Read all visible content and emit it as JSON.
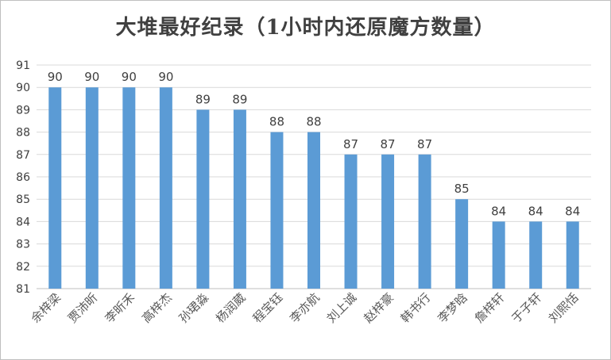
{
  "chart_data": {
    "type": "bar",
    "title": "大堆最好纪录（1小时内还原魔方数量）",
    "xlabel": "",
    "ylabel": "",
    "ylim": [
      81,
      91
    ],
    "yticks": [
      81,
      82,
      83,
      84,
      85,
      86,
      87,
      88,
      89,
      90,
      91
    ],
    "grid": true,
    "legend": "none",
    "bar_color": "#5b9bd5",
    "categories": [
      "余梓梁",
      "贾沛昕",
      "李昕禾",
      "高梓杰",
      "孙珺淼",
      "杨润葳",
      "程宝钰",
      "李亦航",
      "刘上诚",
      "赵梓豪",
      "韩书行",
      "李梦晗",
      "詹梓轩",
      "于子轩",
      "刘熙恬"
    ],
    "values": [
      90,
      90,
      90,
      90,
      89,
      89,
      88,
      88,
      87,
      87,
      87,
      85,
      84,
      84,
      84
    ]
  }
}
